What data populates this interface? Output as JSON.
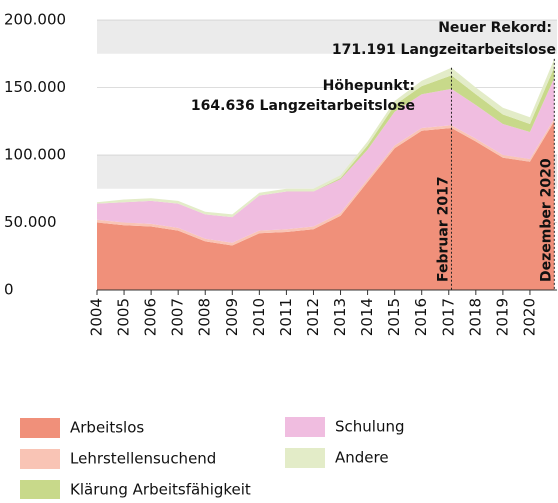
{
  "chart_data": {
    "type": "stacked-area",
    "x": [
      2004,
      2005,
      2006,
      2007,
      2008,
      2009,
      2010,
      2011,
      2012,
      2013,
      2014,
      2015,
      2016,
      2017.1,
      2018,
      2019,
      2020,
      2020.9
    ],
    "series": [
      {
        "name": "Arbeitslos",
        "color": "#f0907a",
        "values": [
          50000,
          48000,
          47000,
          44000,
          36000,
          33000,
          42000,
          43000,
          45000,
          55000,
          80000,
          105000,
          118000,
          120000,
          110000,
          98000,
          95000,
          125000
        ]
      },
      {
        "name": "Lehrstellensuchend",
        "color": "#f9c4b5",
        "values": [
          2000,
          2000,
          2000,
          2000,
          2000,
          2000,
          2000,
          2000,
          2000,
          2000,
          2000,
          2000,
          2000,
          2000,
          2000,
          2000,
          2000,
          2000
        ]
      },
      {
        "name": "Schulung",
        "color": "#f0bde0",
        "values": [
          12000,
          15000,
          17000,
          18000,
          18000,
          19000,
          26000,
          28000,
          26000,
          25000,
          22000,
          25000,
          25000,
          27000,
          25000,
          23000,
          20000,
          30000
        ]
      },
      {
        "name": "Klärung Arbeitsfähigkeit",
        "color": "#c8d98a",
        "values": [
          0,
          0,
          0,
          0,
          0,
          0,
          0,
          0,
          0,
          1000,
          3000,
          5000,
          6000,
          10000,
          8000,
          7000,
          6000,
          8000
        ]
      },
      {
        "name": "Andere",
        "color": "#e3ecc8",
        "values": [
          1000,
          2000,
          2000,
          2000,
          2000,
          2000,
          2000,
          2000,
          2000,
          2000,
          3000,
          3000,
          4000,
          5636,
          5000,
          5000,
          5000,
          6191
        ]
      }
    ],
    "xlim": [
      2004,
      2021
    ],
    "xticks": [
      2004,
      2005,
      2006,
      2007,
      2008,
      2009,
      2010,
      2011,
      2012,
      2013,
      2014,
      2015,
      2016,
      2017,
      2018,
      2019,
      2020
    ],
    "ylim": [
      0,
      200000
    ],
    "yticks": [
      {
        "value": 0,
        "label": "0"
      },
      {
        "value": 50000,
        "label": "50.000"
      },
      {
        "value": 100000,
        "label": "100.000"
      },
      {
        "value": 150000,
        "label": "150.000"
      },
      {
        "value": 200000,
        "label": "200.000"
      }
    ],
    "grid": true,
    "annotations": [
      {
        "x": 2017.1,
        "label": "Februar 2017",
        "title": "Höhepunkt:",
        "text": "164.636 Langzeitarbeitslose"
      },
      {
        "x": 2020.9,
        "label": "Dezember 2020",
        "title": "Neuer Rekord:",
        "text": "171.191 Langzeitarbeitslose"
      }
    ]
  }
}
